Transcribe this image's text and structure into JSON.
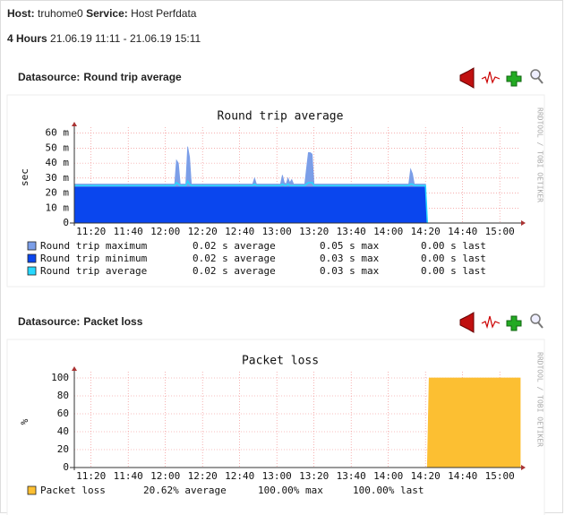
{
  "header": {
    "host_label": "Host:",
    "host": "truhome0",
    "service_label": "Service:",
    "service": "Host Perfdata",
    "period_label": "4 Hours",
    "period": "21.06.19 11:11 - 21.06.19 15:11"
  },
  "chart_data": [
    {
      "type": "area",
      "datasource_label": "Datasource:",
      "datasource": "Round trip average",
      "title": "Round trip average",
      "ylabel": "sec",
      "side_label": "RRDTOOL / TOBI OETIKER",
      "xlim": [
        "11:11",
        "15:11"
      ],
      "xticks": [
        "11:20",
        "11:40",
        "12:00",
        "12:20",
        "12:40",
        "13:00",
        "13:20",
        "13:40",
        "14:00",
        "14:20",
        "14:40",
        "15:00"
      ],
      "ylim": [
        0,
        64
      ],
      "yticks": [
        0,
        {
          "value": 10,
          "label": "10 m"
        },
        {
          "value": 20,
          "label": "20 m"
        },
        {
          "value": 30,
          "label": "30 m"
        },
        {
          "value": 40,
          "label": "40 m"
        },
        {
          "value": 50,
          "label": "50 m"
        },
        {
          "value": 60,
          "label": "60 m"
        }
      ],
      "grid": true,
      "x": [
        "11:11",
        "11:20",
        "11:40",
        "12:00",
        "12:05",
        "12:06",
        "12:07",
        "12:08",
        "12:11",
        "12:12",
        "12:13",
        "12:14",
        "12:15",
        "12:30",
        "12:47",
        "12:48",
        "12:49",
        "13:00",
        "13:02",
        "13:03",
        "13:04",
        "13:05",
        "13:06",
        "13:07",
        "13:08",
        "13:09",
        "13:15",
        "13:17",
        "13:18",
        "13:19",
        "13:20",
        "14:00",
        "14:11",
        "14:12",
        "14:13",
        "14:14",
        "14:20",
        "14:21"
      ],
      "series": [
        {
          "name": "Round trip maximum",
          "color": "#7b9ee8",
          "style": "area",
          "stats": [
            "0.02 s average",
            "0.05 s max",
            "0.00 s last"
          ],
          "values": [
            26,
            26,
            26,
            26,
            26,
            42,
            40,
            26,
            26,
            51,
            44,
            26,
            26,
            26,
            26,
            30,
            26,
            26,
            26,
            32,
            27,
            26,
            30,
            27,
            29,
            26,
            26,
            47,
            47,
            46,
            26,
            26,
            26,
            36,
            33,
            26,
            26,
            0
          ]
        },
        {
          "name": "Round trip minimum",
          "color": "#0a46ee",
          "style": "area",
          "stats": [
            "0.02 s average",
            "0.03 s max",
            "0.00 s last"
          ],
          "values": [
            24,
            24,
            24,
            24,
            24,
            24,
            24,
            24,
            24,
            24,
            24,
            24,
            24,
            24,
            24,
            24,
            24,
            24,
            24,
            24,
            24,
            24,
            24,
            24,
            24,
            24,
            24,
            24,
            24,
            24,
            24,
            24,
            24,
            24,
            24,
            24,
            24,
            0
          ]
        },
        {
          "name": "Round trip average",
          "color": "#27d8ff",
          "style": "line",
          "stats": [
            "0.02 s average",
            "0.03 s max",
            "0.00 s last"
          ],
          "values": [
            25,
            25,
            25,
            25,
            25,
            27,
            26,
            25,
            25,
            28,
            26,
            25,
            25,
            25,
            25,
            26,
            25,
            25,
            25,
            26,
            25,
            25,
            26,
            25,
            25,
            25,
            25,
            27,
            27,
            27,
            25,
            25,
            25,
            26,
            26,
            25,
            25,
            0
          ]
        }
      ]
    },
    {
      "type": "area",
      "datasource_label": "Datasource:",
      "datasource": "Packet loss",
      "title": "Packet loss",
      "ylabel": "%",
      "side_label": "RRDTOOL / TOBI OETIKER",
      "xlim": [
        "11:11",
        "15:11"
      ],
      "xticks": [
        "11:20",
        "11:40",
        "12:00",
        "12:20",
        "12:40",
        "13:00",
        "13:20",
        "13:40",
        "14:00",
        "14:20",
        "14:40",
        "15:00"
      ],
      "ylim": [
        0,
        107
      ],
      "yticks": [
        0,
        20,
        40,
        60,
        80,
        100
      ],
      "grid": true,
      "x": [
        "11:11",
        "14:21",
        "14:22",
        "15:11"
      ],
      "series": [
        {
          "name": "Packet loss",
          "color": "#fcbf32",
          "style": "area",
          "stats": [
            "20.62% average",
            "100.00% max",
            "100.00% last"
          ],
          "values": [
            0,
            0,
            100,
            100
          ]
        }
      ]
    }
  ]
}
